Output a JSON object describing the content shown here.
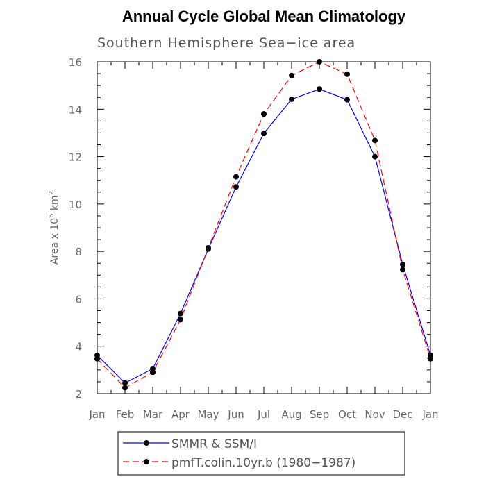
{
  "chart_data": {
    "type": "line",
    "title": "Annual Cycle Global Mean Climatology",
    "subtitle": "Southern Hemisphere Sea−ice area",
    "ylabel": {
      "prefix": "Area x 10",
      "exp1": "6",
      "mid": " km",
      "exp2": "2"
    },
    "categories": [
      "Jan",
      "Feb",
      "Mar",
      "Apr",
      "May",
      "Jun",
      "Jul",
      "Aug",
      "Sep",
      "Oct",
      "Nov",
      "Dec",
      "Jan"
    ],
    "ylim": [
      2,
      16
    ],
    "yticks": [
      2,
      4,
      6,
      8,
      10,
      12,
      14,
      16
    ],
    "series": [
      {
        "name": "SMMR & SSM/I",
        "color": "#0000ff",
        "dash": "solid",
        "values": [
          3.62,
          2.45,
          3.05,
          5.38,
          8.1,
          10.72,
          12.98,
          14.42,
          14.85,
          14.4,
          12.0,
          7.45,
          3.62
        ]
      },
      {
        "name": "pmfT.colin.10yr.b (1980−1987)",
        "color": "#ff0000",
        "dash": "dashed",
        "values": [
          3.47,
          2.25,
          2.9,
          5.12,
          8.15,
          11.15,
          13.8,
          15.42,
          16.0,
          15.48,
          12.68,
          7.23,
          3.47
        ]
      }
    ],
    "legend": "bottom"
  }
}
